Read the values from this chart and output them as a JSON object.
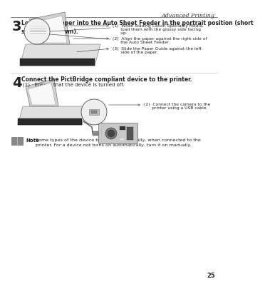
{
  "bg_color": "#ffffff",
  "header_text": "Advanced Printing",
  "page_number": "25",
  "step3_num": "3",
  "step3_text": "Load 4″×6″ paper into the Auto Sheet Feeder in the portrait position (short\nside facing down).",
  "note1_1": "(1)  When loading Canon Speciality Media,",
  "note1_1b": "      load them with the glossy side facing",
  "note1_1c": "      up.",
  "note1_2": "(2)  Align the paper against the right side of",
  "note1_2b": "      the Auto Sheet Feeder.",
  "note1_3": "(3)  Slide the Paper Guide against the left",
  "note1_3b": "      side of the paper.",
  "step4_num": "4",
  "step4_text": "Connect the PictBridge compliant device to the printer.",
  "step4_sub": "(1)   Ensure that the device is turned off.",
  "note4_2": "(2)  Connect the camera to the",
  "note4_2b": "      printer using a USB cable.",
  "note_label": "Note",
  "note_body": "Some types of the device turn on automatically, when connected to the\nprinter. For a device not turns on automatically, turn it on manually.",
  "font_color": "#222222",
  "gray_color": "#666666"
}
